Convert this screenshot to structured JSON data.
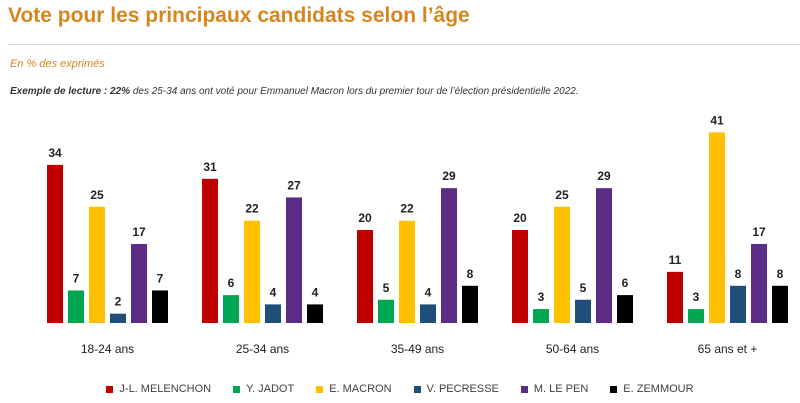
{
  "header": {
    "title": "Vote pour les principaux candidats selon l’âge",
    "subtitle": "En % des exprimés",
    "reading_bold": "Exemple de lecture : 22%",
    "reading_rest": " des 25-34 ans ont voté pour Emmanuel Macron lors du premier tour de l’élection présidentielle 2022."
  },
  "chart_data": {
    "type": "bar",
    "title": "Vote pour les principaux candidats selon l’âge",
    "xlabel": "",
    "ylabel": "",
    "ylim": [
      0,
      45
    ],
    "grid": false,
    "legend_position": "bottom",
    "categories": [
      "18-24 ans",
      "25-34 ans",
      "35-49 ans",
      "50-64 ans",
      "65 ans et +"
    ],
    "series": [
      {
        "name": "J-L. MELENCHON",
        "color": "#c00000",
        "values": [
          34,
          31,
          20,
          20,
          11
        ]
      },
      {
        "name": "Y. JADOT",
        "color": "#00a651",
        "values": [
          7,
          6,
          5,
          3,
          3
        ]
      },
      {
        "name": "E. MACRON",
        "color": "#ffc000",
        "values": [
          25,
          22,
          22,
          25,
          41
        ]
      },
      {
        "name": "V. PECRESSE",
        "color": "#1f4e79",
        "values": [
          2,
          4,
          4,
          5,
          8
        ]
      },
      {
        "name": "M. LE PEN",
        "color": "#5b2c83",
        "values": [
          17,
          27,
          29,
          29,
          17
        ]
      },
      {
        "name": "E. ZEMMOUR",
        "color": "#000000",
        "values": [
          7,
          4,
          8,
          6,
          8
        ]
      }
    ]
  }
}
